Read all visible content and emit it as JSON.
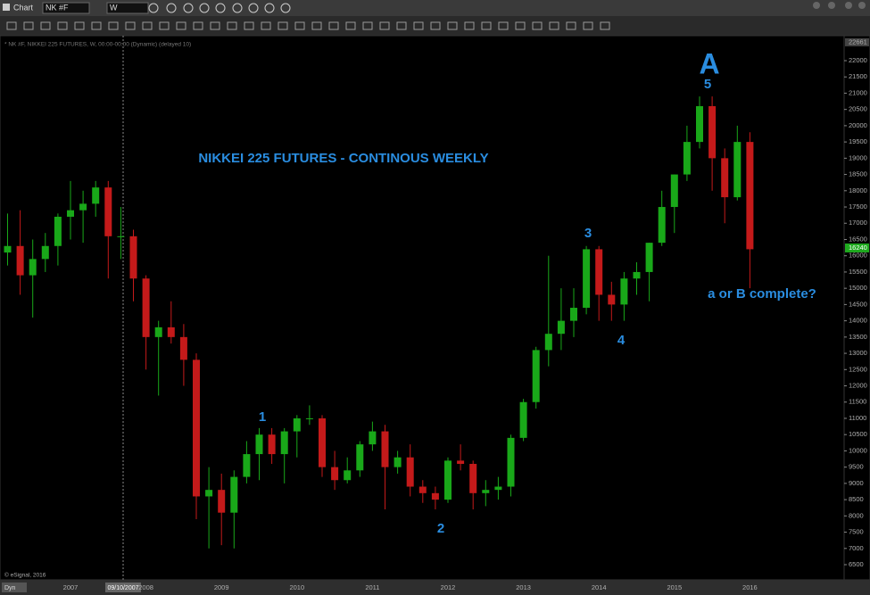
{
  "toolbar": {
    "title": "Chart",
    "symbol": "NK #F",
    "interval": "W"
  },
  "chart_info": "* NK #F, NIKKEI 225 FUTURES, W, 00:00-00:00 (Dynamic) (delayed 10)",
  "footer": {
    "copyright": "© eSignal, 2016",
    "mode": "Dyn",
    "cursor_date": "09/10/2007"
  },
  "chart_data": {
    "type": "candlestick",
    "title": "NIKKEI 225 FUTURES - CONTINOUS WEEKLY",
    "annotations": {
      "wave_a": "A",
      "wave_5": "5",
      "wave_1": "1",
      "wave_2": "2",
      "wave_3": "3",
      "wave_4": "4",
      "question": "a or B complete?"
    },
    "categories": [
      null,
      null,
      null,
      null,
      null,
      "2007",
      null,
      null,
      null,
      null,
      null,
      "2008",
      null,
      null,
      null,
      null,
      null,
      "2009",
      null,
      null,
      null,
      null,
      null,
      "2010",
      null,
      null,
      null,
      null,
      null,
      "2011",
      null,
      null,
      null,
      null,
      null,
      "2012",
      null,
      null,
      null,
      null,
      null,
      "2013",
      null,
      null,
      null,
      null,
      null,
      "2014",
      null,
      null,
      null,
      null,
      null,
      "2015",
      null,
      null,
      null,
      null,
      null,
      "2016"
    ],
    "open": [
      16100,
      16300,
      15400,
      15900,
      16300,
      17200,
      17400,
      17600,
      18100,
      16600,
      16600,
      15300,
      13500,
      13800,
      13500,
      12800,
      8600,
      8800,
      8100,
      9200,
      9900,
      10500,
      9900,
      10600,
      11000,
      11000,
      9500,
      9100,
      9400,
      10200,
      10600,
      9500,
      9800,
      8900,
      8700,
      8500,
      9700,
      9600,
      8700,
      8800,
      8900,
      10400,
      11500,
      13100,
      13600,
      14000,
      14400,
      16200,
      14800,
      14500,
      15300,
      15500,
      16400,
      17500,
      18500,
      19500,
      20600,
      19000,
      17800,
      19500
    ],
    "high": [
      17300,
      17400,
      16500,
      16700,
      17300,
      18300,
      18000,
      18300,
      18300,
      17500,
      16800,
      15400,
      14000,
      14600,
      13900,
      13000,
      9500,
      9300,
      9400,
      10300,
      10700,
      10700,
      10700,
      11100,
      11400,
      11100,
      10000,
      9800,
      10300,
      10900,
      10800,
      10000,
      10200,
      9100,
      8900,
      9800,
      10200,
      9700,
      9100,
      9200,
      10500,
      11600,
      13200,
      16000,
      15000,
      15000,
      16300,
      16300,
      15200,
      15500,
      15800,
      16400,
      18000,
      18500,
      20000,
      20900,
      20900,
      19300,
      20000,
      19800
    ],
    "low": [
      15700,
      14800,
      14100,
      15500,
      15700,
      16500,
      16400,
      17200,
      15300,
      15900,
      14600,
      12500,
      11700,
      13300,
      12000,
      7900,
      7000,
      7100,
      7000,
      9000,
      9100,
      9600,
      9000,
      9800,
      10800,
      9200,
      8800,
      9000,
      9200,
      10000,
      8200,
      9300,
      8600,
      8400,
      8200,
      8400,
      9400,
      8200,
      8300,
      8500,
      8600,
      10300,
      11300,
      12600,
      13100,
      13500,
      14200,
      14000,
      14000,
      14000,
      14800,
      14600,
      16300,
      16700,
      18300,
      19300,
      18000,
      17000,
      17700,
      15000
    ],
    "close": [
      16300,
      15400,
      15900,
      16300,
      17200,
      17400,
      17600,
      18100,
      16600,
      16600,
      15300,
      13500,
      13800,
      13500,
      12800,
      8600,
      8800,
      8100,
      9200,
      9900,
      10500,
      9900,
      10600,
      11000,
      11000,
      9500,
      9100,
      9400,
      10200,
      10600,
      9500,
      9800,
      8900,
      8700,
      8500,
      9700,
      9600,
      8700,
      8800,
      8900,
      10400,
      11500,
      13100,
      13600,
      14000,
      14400,
      16200,
      14800,
      14500,
      15300,
      15500,
      16400,
      17500,
      18500,
      19500,
      20600,
      19000,
      17800,
      19500,
      16200
    ],
    "up_color": "#19a819",
    "down_color": "#c41a1a",
    "ylim": [
      6034,
      22713
    ],
    "yticks": [
      6500,
      7000,
      7500,
      8000,
      8500,
      9000,
      9500,
      10000,
      10500,
      11000,
      11500,
      12000,
      12500,
      13000,
      13500,
      14000,
      14500,
      15000,
      15500,
      16000,
      16500,
      17000,
      17500,
      18000,
      18500,
      19000,
      19500,
      20000,
      20500,
      21000,
      21500,
      22000
    ],
    "last_price": 16240,
    "axis_high": 22661
  }
}
